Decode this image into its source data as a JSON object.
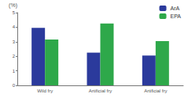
{
  "chart_data": {
    "type": "bar",
    "categories": [
      "Wild fry",
      "Artificial fry",
      "Artificial fry"
    ],
    "series": [
      {
        "name": "ArA",
        "color": "#2b3a9c",
        "values": [
          3.95,
          2.25,
          2.05
        ]
      },
      {
        "name": "EPA",
        "color": "#2ea84a",
        "values": [
          3.15,
          4.25,
          3.05
        ]
      }
    ],
    "y_label": "(%)",
    "ylim": [
      0,
      5
    ],
    "yticks": [
      0,
      1,
      2,
      3,
      4,
      5
    ],
    "grid": false,
    "legend": "upper right"
  }
}
